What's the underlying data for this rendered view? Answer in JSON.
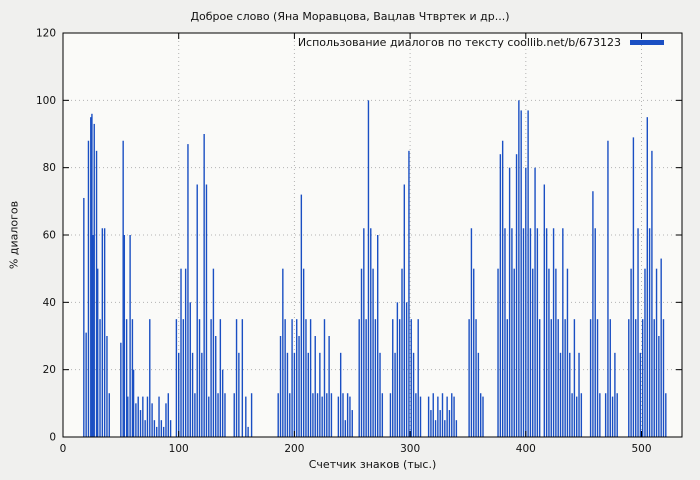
{
  "figure": {
    "background": "#f0f0ee",
    "plot_background": "#fafaf8"
  },
  "chart_data": {
    "type": "bar",
    "title": "Доброе слово (Яна Моравцова, Вацлав Чтвртек и др...)",
    "legend": "Использование диалогов по тексту coollib.net/b/673123",
    "legend_position": "top-right",
    "xlabel": "Счетчик знаков (тыс.)",
    "ylabel": "% диалогов",
    "xlim": [
      0,
      535
    ],
    "ylim": [
      0,
      120
    ],
    "xticks": [
      0,
      100,
      200,
      300,
      400,
      500
    ],
    "yticks": [
      0,
      20,
      40,
      60,
      80,
      100,
      120
    ],
    "grid": true,
    "grid_color": "#b4b4b4",
    "bar_color": "#1a4fc3",
    "points": [
      [
        18,
        71
      ],
      [
        20,
        31
      ],
      [
        22,
        88
      ],
      [
        24,
        95
      ],
      [
        25,
        96
      ],
      [
        26,
        60
      ],
      [
        27,
        93
      ],
      [
        29,
        85
      ],
      [
        30,
        50
      ],
      [
        32,
        35
      ],
      [
        34,
        62
      ],
      [
        36,
        62
      ],
      [
        38,
        30
      ],
      [
        40,
        13
      ],
      [
        50,
        28
      ],
      [
        52,
        88
      ],
      [
        53,
        60
      ],
      [
        55,
        35
      ],
      [
        56,
        12
      ],
      [
        58,
        60
      ],
      [
        60,
        35
      ],
      [
        61,
        20
      ],
      [
        63,
        10
      ],
      [
        65,
        12
      ],
      [
        67,
        8
      ],
      [
        69,
        12
      ],
      [
        71,
        5
      ],
      [
        73,
        12
      ],
      [
        75,
        35
      ],
      [
        77,
        10
      ],
      [
        79,
        5
      ],
      [
        81,
        3
      ],
      [
        83,
        12
      ],
      [
        85,
        5
      ],
      [
        87,
        3
      ],
      [
        89,
        10
      ],
      [
        91,
        13
      ],
      [
        93,
        5
      ],
      [
        98,
        35
      ],
      [
        100,
        25
      ],
      [
        102,
        50
      ],
      [
        104,
        35
      ],
      [
        106,
        50
      ],
      [
        108,
        87
      ],
      [
        110,
        40
      ],
      [
        112,
        25
      ],
      [
        114,
        13
      ],
      [
        116,
        75
      ],
      [
        118,
        35
      ],
      [
        120,
        25
      ],
      [
        122,
        90
      ],
      [
        124,
        75
      ],
      [
        126,
        12
      ],
      [
        128,
        35
      ],
      [
        130,
        50
      ],
      [
        132,
        30
      ],
      [
        134,
        13
      ],
      [
        136,
        35
      ],
      [
        138,
        20
      ],
      [
        140,
        13
      ],
      [
        148,
        13
      ],
      [
        150,
        35
      ],
      [
        152,
        25
      ],
      [
        155,
        35
      ],
      [
        158,
        12
      ],
      [
        160,
        3
      ],
      [
        163,
        13
      ],
      [
        186,
        13
      ],
      [
        188,
        30
      ],
      [
        190,
        50
      ],
      [
        192,
        35
      ],
      [
        194,
        25
      ],
      [
        196,
        13
      ],
      [
        198,
        35
      ],
      [
        200,
        25
      ],
      [
        202,
        35
      ],
      [
        204,
        30
      ],
      [
        206,
        72
      ],
      [
        208,
        50
      ],
      [
        210,
        35
      ],
      [
        212,
        25
      ],
      [
        214,
        35
      ],
      [
        216,
        13
      ],
      [
        218,
        30
      ],
      [
        220,
        13
      ],
      [
        222,
        25
      ],
      [
        224,
        12
      ],
      [
        226,
        35
      ],
      [
        228,
        13
      ],
      [
        230,
        30
      ],
      [
        232,
        13
      ],
      [
        238,
        12
      ],
      [
        240,
        25
      ],
      [
        242,
        13
      ],
      [
        244,
        5
      ],
      [
        246,
        13
      ],
      [
        248,
        12
      ],
      [
        250,
        8
      ],
      [
        256,
        35
      ],
      [
        258,
        50
      ],
      [
        260,
        62
      ],
      [
        262,
        35
      ],
      [
        264,
        100
      ],
      [
        266,
        62
      ],
      [
        268,
        50
      ],
      [
        270,
        35
      ],
      [
        272,
        60
      ],
      [
        274,
        25
      ],
      [
        276,
        13
      ],
      [
        283,
        13
      ],
      [
        285,
        35
      ],
      [
        287,
        25
      ],
      [
        289,
        40
      ],
      [
        291,
        35
      ],
      [
        293,
        50
      ],
      [
        295,
        75
      ],
      [
        297,
        40
      ],
      [
        299,
        85
      ],
      [
        301,
        35
      ],
      [
        303,
        25
      ],
      [
        305,
        13
      ],
      [
        307,
        35
      ],
      [
        309,
        12
      ],
      [
        316,
        12
      ],
      [
        318,
        8
      ],
      [
        320,
        13
      ],
      [
        322,
        5
      ],
      [
        324,
        12
      ],
      [
        326,
        8
      ],
      [
        328,
        13
      ],
      [
        330,
        5
      ],
      [
        332,
        12
      ],
      [
        334,
        8
      ],
      [
        336,
        13
      ],
      [
        338,
        12
      ],
      [
        340,
        5
      ],
      [
        351,
        35
      ],
      [
        353,
        62
      ],
      [
        355,
        50
      ],
      [
        357,
        35
      ],
      [
        359,
        25
      ],
      [
        361,
        13
      ],
      [
        363,
        12
      ],
      [
        376,
        50
      ],
      [
        378,
        84
      ],
      [
        380,
        88
      ],
      [
        382,
        62
      ],
      [
        384,
        35
      ],
      [
        386,
        80
      ],
      [
        388,
        62
      ],
      [
        390,
        50
      ],
      [
        392,
        84
      ],
      [
        394,
        100
      ],
      [
        396,
        97
      ],
      [
        398,
        62
      ],
      [
        400,
        80
      ],
      [
        402,
        97
      ],
      [
        404,
        62
      ],
      [
        406,
        50
      ],
      [
        408,
        80
      ],
      [
        410,
        62
      ],
      [
        412,
        35
      ],
      [
        416,
        75
      ],
      [
        418,
        62
      ],
      [
        420,
        50
      ],
      [
        422,
        35
      ],
      [
        424,
        62
      ],
      [
        426,
        50
      ],
      [
        428,
        35
      ],
      [
        430,
        25
      ],
      [
        432,
        62
      ],
      [
        434,
        35
      ],
      [
        436,
        50
      ],
      [
        438,
        25
      ],
      [
        440,
        13
      ],
      [
        442,
        35
      ],
      [
        444,
        12
      ],
      [
        446,
        25
      ],
      [
        448,
        13
      ],
      [
        456,
        35
      ],
      [
        458,
        73
      ],
      [
        460,
        62
      ],
      [
        462,
        35
      ],
      [
        464,
        13
      ],
      [
        469,
        13
      ],
      [
        471,
        88
      ],
      [
        473,
        35
      ],
      [
        475,
        12
      ],
      [
        477,
        25
      ],
      [
        479,
        13
      ],
      [
        489,
        35
      ],
      [
        491,
        50
      ],
      [
        493,
        89
      ],
      [
        495,
        35
      ],
      [
        497,
        62
      ],
      [
        499,
        25
      ],
      [
        501,
        35
      ],
      [
        503,
        50
      ],
      [
        505,
        95
      ],
      [
        507,
        62
      ],
      [
        509,
        85
      ],
      [
        511,
        35
      ],
      [
        513,
        50
      ],
      [
        515,
        30
      ],
      [
        517,
        53
      ],
      [
        519,
        35
      ],
      [
        521,
        13
      ]
    ]
  }
}
